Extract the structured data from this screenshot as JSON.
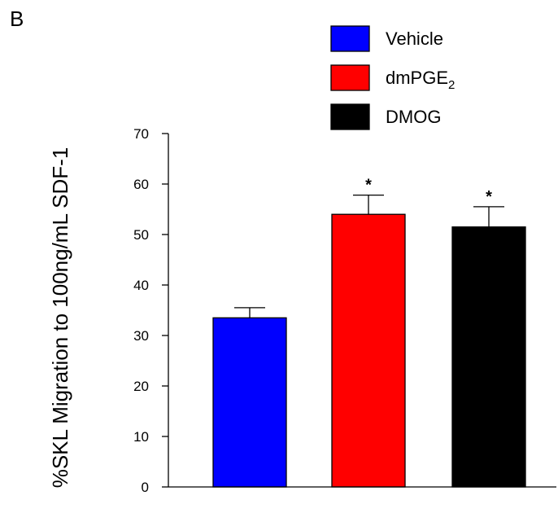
{
  "panel_label": "B",
  "colors": {
    "Vehicle": "#0000ff",
    "dmPGE2": "#ff0000",
    "DMOG": "#000000"
  },
  "legend": [
    {
      "name": "Vehicle",
      "main": "Vehicle",
      "sub": "",
      "color": "#0000ff"
    },
    {
      "name": "dmPGE2",
      "main": "dmPGE",
      "sub": "2",
      "color": "#ff0000"
    },
    {
      "name": "DMOG",
      "main": "DMOG",
      "sub": "",
      "color": "#000000"
    }
  ],
  "chart_data": {
    "type": "bar",
    "categories": [
      "Vehicle",
      "dmPGE2",
      "DMOG"
    ],
    "values": [
      33.5,
      54,
      51.5
    ],
    "errors": [
      2,
      3.8,
      4
    ],
    "annotations": [
      "",
      "*",
      "*"
    ],
    "title": "",
    "xlabel": "",
    "ylabel": "%SKL Migration to 100ng/mL SDF-1",
    "ylim": [
      0,
      70
    ],
    "yticks": [
      0,
      10,
      20,
      30,
      40,
      50,
      60,
      70
    ],
    "grid": false,
    "legend_position": "top-right"
  }
}
